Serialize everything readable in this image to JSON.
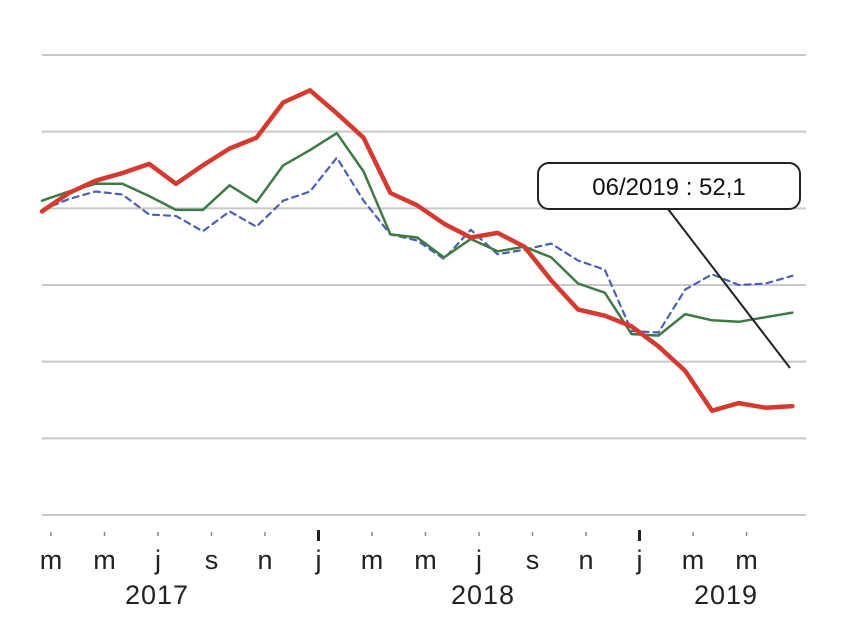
{
  "chart_data": {
    "type": "line",
    "title": "",
    "xlabel": "",
    "ylabel": "",
    "ylim": [
      35,
      65
    ],
    "grid": true,
    "x_tick_labels": [
      "m",
      "m",
      "j",
      "s",
      "n",
      "j",
      "m",
      "m",
      "j",
      "s",
      "n",
      "j",
      "m",
      "m"
    ],
    "year_labels": [
      "2017",
      "2018",
      "2019"
    ],
    "annotation": {
      "text": "06/2019  : 52,1"
    },
    "series": [
      {
        "color": "#d63a2e",
        "style": "solid-thick",
        "values": [
          54.8,
          56.0,
          56.8,
          57.3,
          57.9,
          56.6,
          57.8,
          58.9,
          59.6,
          61.9,
          62.7,
          61.2,
          59.6,
          56.0,
          55.2,
          54.0,
          53.1,
          53.4,
          52.5,
          50.3,
          48.4,
          48.0,
          47.3,
          46.0,
          44.4,
          41.8,
          42.3,
          42.0,
          42.1
        ]
      },
      {
        "color": "#3e7a44",
        "style": "solid",
        "values": [
          55.5,
          56.1,
          56.6,
          56.6,
          55.8,
          54.9,
          54.9,
          56.5,
          55.4,
          57.8,
          58.8,
          59.9,
          57.4,
          53.3,
          53.1,
          51.8,
          53.0,
          52.2,
          52.5,
          51.8,
          50.1,
          49.5,
          46.8,
          46.7,
          48.1,
          47.7,
          47.6,
          47.9,
          48.2
        ]
      },
      {
        "color": "#4a5fb5",
        "style": "dashed",
        "values": [
          54.9,
          55.6,
          56.1,
          55.9,
          54.6,
          54.5,
          53.5,
          54.8,
          53.8,
          55.5,
          56.1,
          58.3,
          55.5,
          53.3,
          52.9,
          51.7,
          53.6,
          52.0,
          52.3,
          52.7,
          51.6,
          51.0,
          47.0,
          46.9,
          49.7,
          50.7,
          50.0,
          50.1,
          50.6
        ]
      }
    ]
  }
}
